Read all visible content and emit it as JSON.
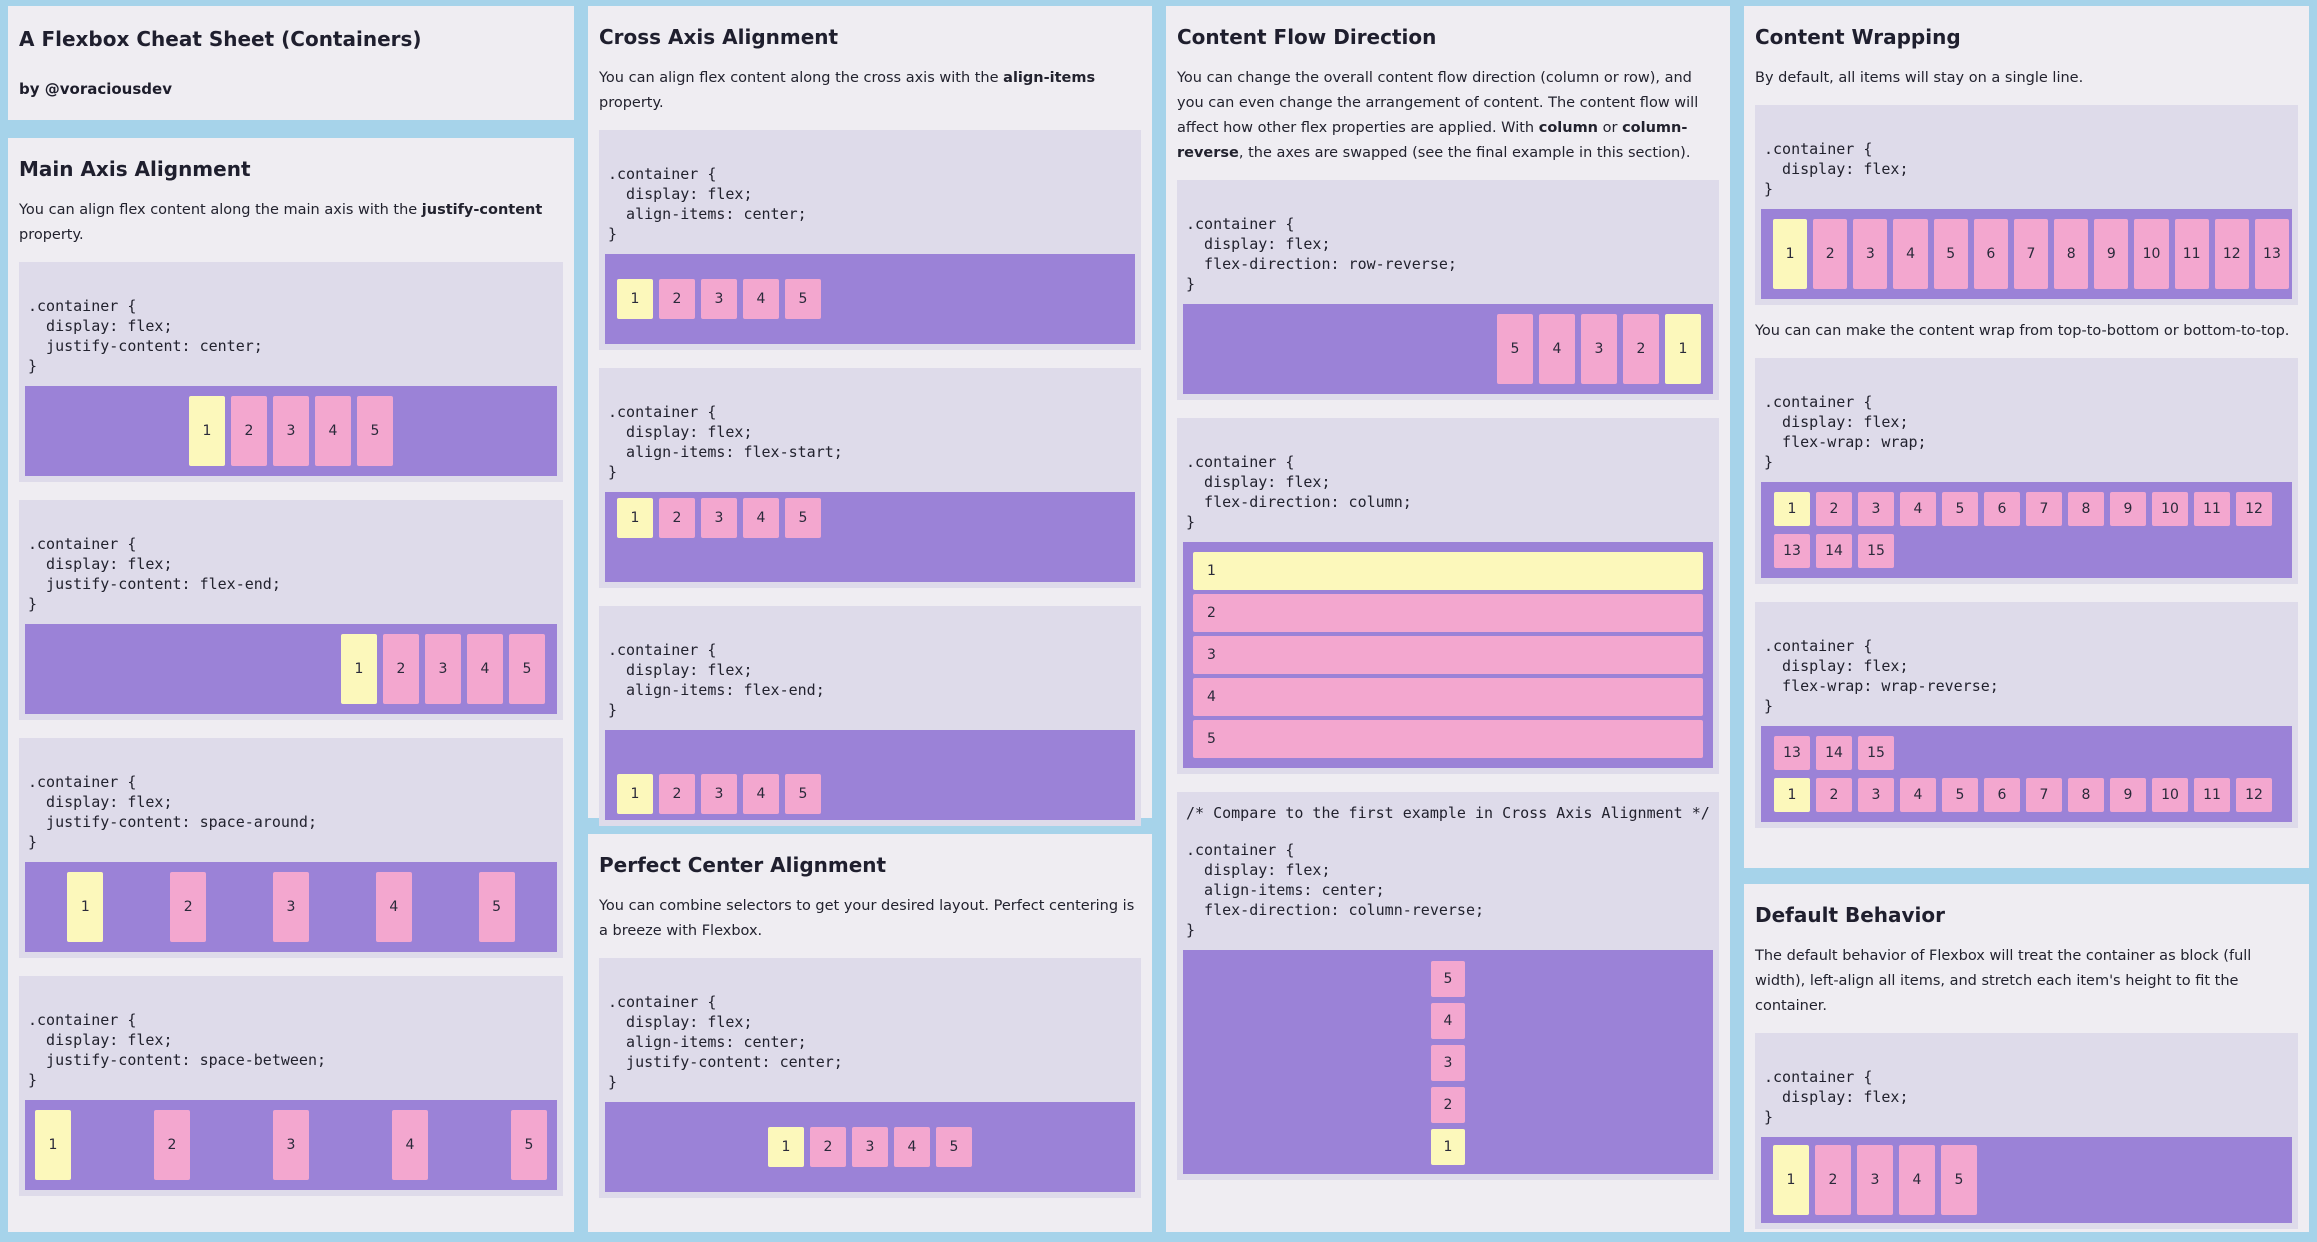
{
  "header": {
    "title": "A Flexbox Cheat Sheet (Containers)",
    "byline": "by @voraciousdev"
  },
  "main_axis": {
    "title": "Main Axis Alignment",
    "desc_pre": "You can align flex content along the main axis with the ",
    "desc_bold": "justify-content",
    "desc_post": " property.",
    "examples": [
      {
        "code": ".container {\n  display: flex;\n  justify-content: center;\n}",
        "items": [
          "1",
          "2",
          "3",
          "4",
          "5"
        ]
      },
      {
        "code": ".container {\n  display: flex;\n  justify-content: flex-end;\n}",
        "items": [
          "1",
          "2",
          "3",
          "4",
          "5"
        ]
      },
      {
        "code": ".container {\n  display: flex;\n  justify-content: space-around;\n}",
        "items": [
          "1",
          "2",
          "3",
          "4",
          "5"
        ]
      },
      {
        "code": ".container {\n  display: flex;\n  justify-content: space-between;\n}",
        "items": [
          "1",
          "2",
          "3",
          "4",
          "5"
        ]
      }
    ]
  },
  "cross_axis": {
    "title": "Cross Axis Alignment",
    "desc_pre": "You can align flex content along the cross axis with the ",
    "desc_bold": "align-items",
    "desc_post": " property.",
    "examples": [
      {
        "code": ".container {\n  display: flex;\n  align-items: center;\n}",
        "items": [
          "1",
          "2",
          "3",
          "4",
          "5"
        ]
      },
      {
        "code": ".container {\n  display: flex;\n  align-items: flex-start;\n}",
        "items": [
          "1",
          "2",
          "3",
          "4",
          "5"
        ]
      },
      {
        "code": ".container {\n  display: flex;\n  align-items: flex-end;\n}",
        "items": [
          "1",
          "2",
          "3",
          "4",
          "5"
        ]
      }
    ]
  },
  "perfect_center": {
    "title": "Perfect Center Alignment",
    "desc": "You can combine selectors to get your desired layout. Perfect centering is a breeze with Flexbox.",
    "code": ".container {\n  display: flex;\n  align-items: center;\n  justify-content: center;\n}",
    "items": [
      "1",
      "2",
      "3",
      "4",
      "5"
    ]
  },
  "flow": {
    "title": "Content Flow Direction",
    "desc_1": "You can change the overall content flow direction (column or row), and you can even change the arrangement of content. The content flow will affect how other flex properties are applied. With ",
    "desc_bold_1": "column",
    "desc_2": " or ",
    "desc_bold_2": "column-reverse",
    "desc_3": ", the axes are swapped (see the final example in this section).",
    "examples": [
      {
        "code": ".container {\n  display: flex;\n  flex-direction: row-reverse;\n}",
        "items": [
          "1",
          "2",
          "3",
          "4",
          "5"
        ]
      },
      {
        "code": ".container {\n  display: flex;\n  flex-direction: column;\n}",
        "items": [
          "1",
          "2",
          "3",
          "4",
          "5"
        ]
      },
      {
        "comment": "/* Compare to the first example in Cross Axis Alignment */",
        "code": ".container {\n  display: flex;\n  align-items: center;\n  flex-direction: column-reverse;\n}",
        "items": [
          "1",
          "2",
          "3",
          "4",
          "5"
        ]
      }
    ]
  },
  "wrapping": {
    "title": "Content Wrapping",
    "desc": "By default, all items will stay on a single line.",
    "desc2": "You can can make the content wrap from top-to-bottom or bottom-to-top.",
    "examples": [
      {
        "code": ".container {\n  display: flex;\n}",
        "items": [
          "1",
          "2",
          "3",
          "4",
          "5",
          "6",
          "7",
          "8",
          "9",
          "10",
          "11",
          "12",
          "13"
        ]
      },
      {
        "code": ".container {\n  display: flex;\n  flex-wrap: wrap;\n}",
        "items": [
          "1",
          "2",
          "3",
          "4",
          "5",
          "6",
          "7",
          "8",
          "9",
          "10",
          "11",
          "12",
          "13",
          "14",
          "15"
        ]
      },
      {
        "code": ".container {\n  display: flex;\n  flex-wrap: wrap-reverse;\n}",
        "items": [
          "1",
          "2",
          "3",
          "4",
          "5",
          "6",
          "7",
          "8",
          "9",
          "10",
          "11",
          "12",
          "13",
          "14",
          "15"
        ]
      }
    ]
  },
  "default": {
    "title": "Default Behavior",
    "desc": "The default behavior of Flexbox will treat the container as block (full width), left-align all items, and stretch each item's height to fit the container.",
    "code": ".container {\n  display: flex;\n}",
    "items": [
      "1",
      "2",
      "3",
      "4",
      "5"
    ]
  },
  "colors": {
    "background": "#a6d3ea",
    "panel": "#efedf2",
    "code_bg": "#dedbea",
    "container": "#9b82d7",
    "item": "#f3a7cf",
    "first_item": "#fcf8bb"
  }
}
